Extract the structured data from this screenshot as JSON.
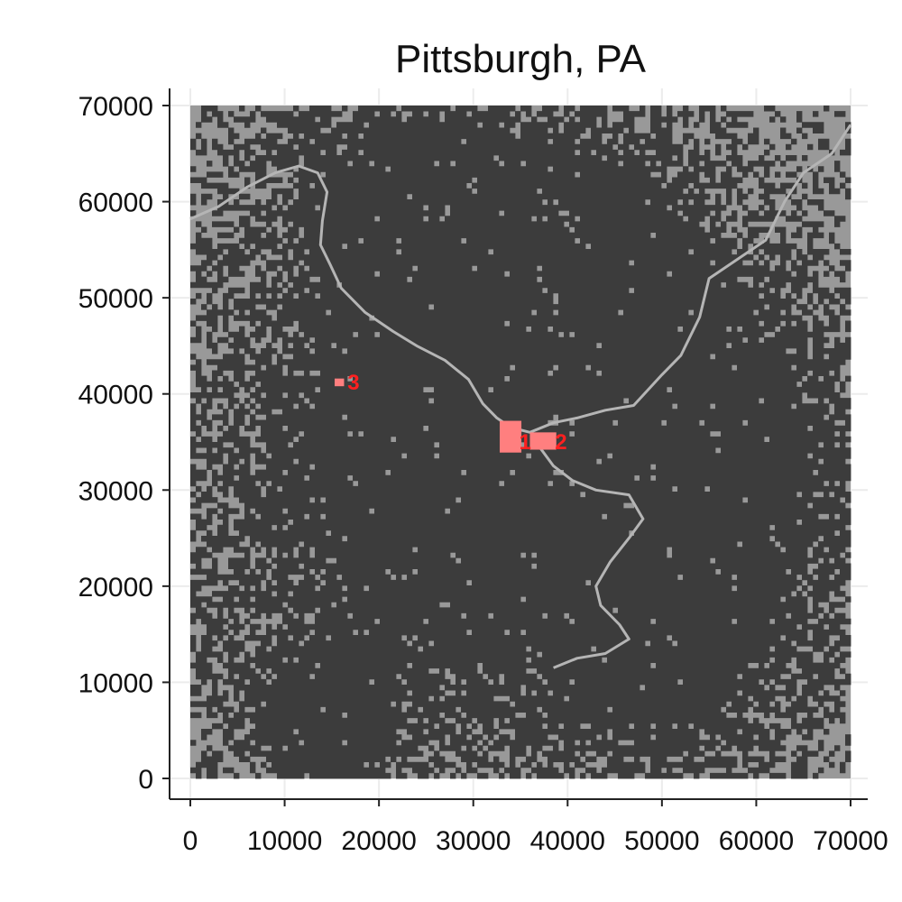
{
  "chart_data": {
    "type": "heatmap",
    "title": "Pittsburgh, PA",
    "xlabel": "",
    "ylabel": "",
    "xlim": [
      0,
      70000
    ],
    "ylim": [
      0,
      70000
    ],
    "x_ticks": [
      "0",
      "10000",
      "20000",
      "30000",
      "40000",
      "50000",
      "60000",
      "70000"
    ],
    "y_ticks": [
      "0",
      "10000",
      "20000",
      "30000",
      "40000",
      "50000",
      "60000",
      "70000"
    ],
    "grid": true,
    "colors": {
      "background": "#999999",
      "developed": "#3c3c3c",
      "river": "#b5b5b5",
      "highlight": "#ff7f7f",
      "marker_label": "#ff2020"
    },
    "markers": [
      {
        "label": "1",
        "x": 35500,
        "y": 35000
      },
      {
        "label": "2",
        "x": 39300,
        "y": 35000
      },
      {
        "label": "3",
        "x": 17300,
        "y": 41200
      }
    ],
    "highlight_areas": [
      {
        "x": [
          32800,
          35100
        ],
        "y": [
          33900,
          37200
        ]
      },
      {
        "x": [
          36000,
          38800
        ],
        "y": [
          34200,
          36000
        ]
      },
      {
        "x": [
          15300,
          16300
        ],
        "y": [
          40800,
          41600
        ]
      }
    ],
    "urban_centers": [
      {
        "x": 30000,
        "y": 30000,
        "r": 22000,
        "w": 1.0
      },
      {
        "x": 34000,
        "y": 36000,
        "r": 9000,
        "w": 0.9
      },
      {
        "x": 48000,
        "y": 42000,
        "r": 10000,
        "w": 0.6
      },
      {
        "x": 13500,
        "y": 5500,
        "r": 5000,
        "w": 0.8
      },
      {
        "x": 20000,
        "y": 63000,
        "r": 10000,
        "w": 0.55
      },
      {
        "x": 52000,
        "y": 10000,
        "r": 9000,
        "w": 0.5
      },
      {
        "x": 40000,
        "y": 55000,
        "r": 12000,
        "w": 0.55
      },
      {
        "x": 60000,
        "y": 30000,
        "r": 12000,
        "w": 0.45
      }
    ],
    "rivers": [
      [
        [
          0,
          58200
        ],
        [
          3000,
          59500
        ],
        [
          6000,
          61500
        ],
        [
          9000,
          63000
        ],
        [
          11500,
          63700
        ],
        [
          13500,
          63000
        ],
        [
          14500,
          61000
        ],
        [
          14000,
          58000
        ],
        [
          13800,
          55500
        ],
        [
          14800,
          53500
        ],
        [
          16000,
          51000
        ],
        [
          18500,
          48500
        ],
        [
          21500,
          46500
        ],
        [
          24000,
          45000
        ],
        [
          27000,
          43500
        ],
        [
          29500,
          41500
        ],
        [
          31000,
          39000
        ],
        [
          32500,
          37500
        ],
        [
          34000,
          36500
        ],
        [
          36000,
          36000
        ],
        [
          38500,
          37000
        ],
        [
          41000,
          37500
        ],
        [
          44000,
          38300
        ],
        [
          47000,
          38800
        ],
        [
          50000,
          42000
        ],
        [
          52000,
          44000
        ],
        [
          54000,
          48000
        ],
        [
          55000,
          52000
        ],
        [
          58000,
          54000
        ],
        [
          61000,
          56000
        ],
        [
          63000,
          60000
        ],
        [
          65000,
          63000
        ],
        [
          68000,
          65000
        ],
        [
          70000,
          68000
        ]
      ],
      [
        [
          37000,
          34500
        ],
        [
          38500,
          32500
        ],
        [
          40500,
          31000
        ],
        [
          43000,
          30000
        ],
        [
          46500,
          29500
        ],
        [
          48000,
          27000
        ],
        [
          46500,
          25000
        ],
        [
          44500,
          22500
        ],
        [
          43000,
          20000
        ],
        [
          43500,
          18000
        ],
        [
          45500,
          16000
        ],
        [
          46500,
          14500
        ],
        [
          44000,
          13000
        ],
        [
          41000,
          12500
        ],
        [
          38500,
          11500
        ]
      ]
    ]
  }
}
